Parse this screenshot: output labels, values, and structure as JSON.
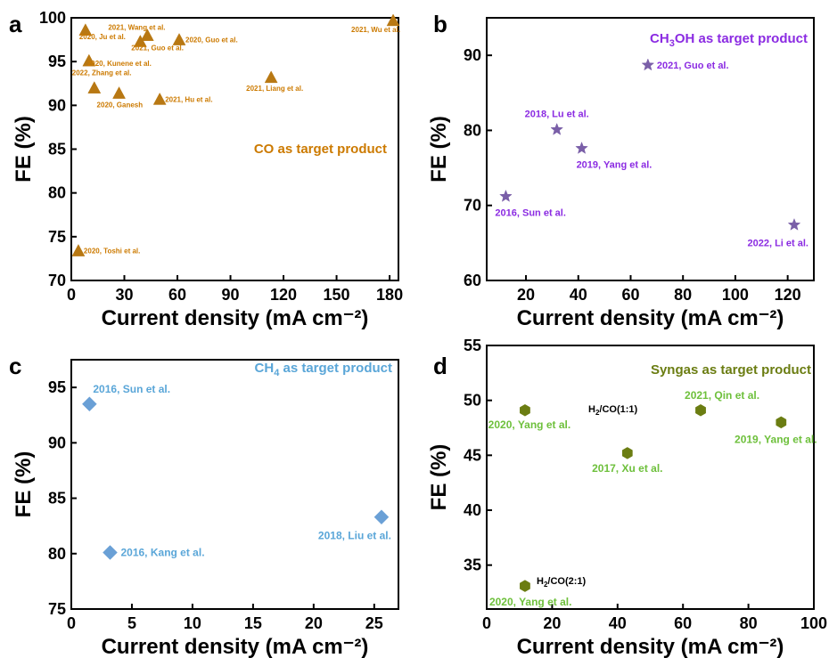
{
  "colors": {
    "a": "#b87813",
    "a_text": "#cc7a00",
    "b": "#7a5fa8",
    "b_text": "#8b2be2",
    "c": "#6aa0d6",
    "c_text": "#5aa6d8",
    "d": "#6b7d12",
    "d_text": "#6ec03c",
    "black": "#000000"
  },
  "chart_data": [
    {
      "panel": "a",
      "type": "scatter",
      "marker": "triangle",
      "xlabel": "Current density (mA cm⁻²)",
      "ylabel": "FE (%)",
      "xlim": [
        0,
        185
      ],
      "ylim": [
        70,
        100
      ],
      "xticks": [
        "0",
        "30",
        "60",
        "90",
        "120",
        "150",
        "180"
      ],
      "yticks": [
        "70",
        "75",
        "80",
        "85",
        "90",
        "95",
        "100"
      ],
      "annotation": "CO as target product",
      "points": [
        {
          "x": 8,
          "y": 98.6,
          "label": "2020, Ju et al."
        },
        {
          "x": 39,
          "y": 97.3,
          "label": "2021, Wang et al."
        },
        {
          "x": 43,
          "y": 98.0,
          "label": "2021, Guo et al."
        },
        {
          "x": 61,
          "y": 97.5,
          "label": "2020, Guo et al."
        },
        {
          "x": 182,
          "y": 99.7,
          "label": "2021, Wu et al."
        },
        {
          "x": 10,
          "y": 95.1,
          "label": "2020, Kunene et al."
        },
        {
          "x": 13,
          "y": 92.0,
          "label": "2022, Zhang et al."
        },
        {
          "x": 27,
          "y": 91.4,
          "label": "2020, Ganesh"
        },
        {
          "x": 50,
          "y": 90.7,
          "label": "2021, Hu et al."
        },
        {
          "x": 113,
          "y": 93.2,
          "label": "2021, Liang et al."
        },
        {
          "x": 4,
          "y": 73.4,
          "label": "2020, Toshi et al."
        }
      ]
    },
    {
      "panel": "b",
      "type": "scatter",
      "marker": "star",
      "xlabel": "Current density (mA cm⁻²)",
      "ylabel": "FE (%)",
      "xlim": [
        5,
        130
      ],
      "ylim": [
        60,
        95
      ],
      "xticks": [
        "20",
        "40",
        "60",
        "80",
        "100",
        "120"
      ],
      "yticks": [
        "60",
        "70",
        "80",
        "90"
      ],
      "annotation_main": "CH",
      "annotation_sub": "3",
      "annotation_rest": "OH as target product",
      "points": [
        {
          "x": 66.6,
          "y": 88.7,
          "label": "2021, Guo et al."
        },
        {
          "x": 31.8,
          "y": 80.1,
          "label": "2018, Lu et al."
        },
        {
          "x": 41.3,
          "y": 77.6,
          "label": "2019, Yang et al."
        },
        {
          "x": 12.3,
          "y": 71.2,
          "label": "2016, Sun et al."
        },
        {
          "x": 122.5,
          "y": 67.4,
          "label": "2022, Li et al."
        }
      ]
    },
    {
      "panel": "c",
      "type": "scatter",
      "marker": "diamond",
      "xlabel": "Current density (mA cm⁻²)",
      "ylabel": "FE (%)",
      "xlim": [
        0,
        27
      ],
      "ylim": [
        75,
        97.5
      ],
      "xticks": [
        "0",
        "5",
        "10",
        "15",
        "20",
        "25"
      ],
      "yticks": [
        "75",
        "80",
        "85",
        "90",
        "95"
      ],
      "annotation_main": "CH",
      "annotation_sub": "4",
      "annotation_rest": " as target product",
      "points": [
        {
          "x": 1.5,
          "y": 93.5,
          "label": "2016, Sun et al."
        },
        {
          "x": 3.2,
          "y": 80.1,
          "label": "2016, Kang et al."
        },
        {
          "x": 25.6,
          "y": 83.3,
          "label": "2018, Liu et al."
        }
      ]
    },
    {
      "panel": "d",
      "type": "scatter",
      "marker": "hexagon",
      "xlabel": "Current density (mA cm⁻²)",
      "ylabel": "FE (%)",
      "xlim": [
        0,
        100
      ],
      "ylim": [
        31,
        55
      ],
      "xticks": [
        "0",
        "20",
        "40",
        "60",
        "80",
        "100"
      ],
      "yticks": [
        "35",
        "40",
        "45",
        "50",
        "55"
      ],
      "annotation": "Syngas as target product",
      "ratio_1": {
        "main": "H",
        "sub": "2",
        "rest": "/CO(1:1)"
      },
      "ratio_2": {
        "main": "H",
        "sub": "2",
        "rest": "/CO(2:1)"
      },
      "points": [
        {
          "x": 11.7,
          "y": 49.1,
          "label": "2020, Yang et al."
        },
        {
          "x": 43.0,
          "y": 45.2,
          "label": "2017, Xu et al."
        },
        {
          "x": 65.4,
          "y": 49.1,
          "label": "2021, Qin et al."
        },
        {
          "x": 90.0,
          "y": 48.0,
          "label": "2019, Yang et al."
        },
        {
          "x": 11.7,
          "y": 33.1,
          "label": "2020, Yang et al."
        }
      ]
    }
  ]
}
